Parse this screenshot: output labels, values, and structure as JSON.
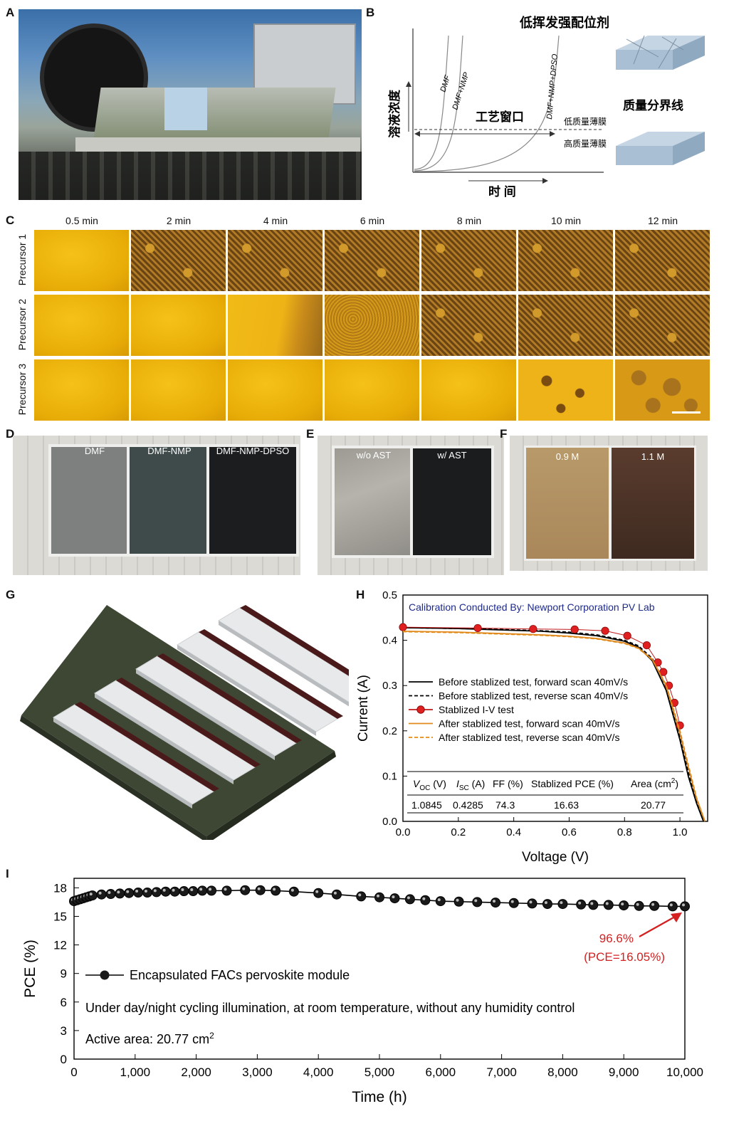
{
  "panels": {
    "A": "A",
    "B": "B",
    "C": "C",
    "D": "D",
    "E": "E",
    "F": "F",
    "G": "G",
    "H": "H",
    "I": "I"
  },
  "panelB": {
    "title": "低挥发强配位剂",
    "ylabel": "溶液浓度",
    "xlabel": "时 间",
    "window_label": "工艺窗口",
    "curves": [
      "DMF",
      "DMF+NMP",
      "DMF+NMP+DPSO"
    ],
    "low_quality": "低质量薄膜",
    "high_quality": "高质量薄膜",
    "boundary": "质量分界线"
  },
  "panelC": {
    "times": [
      "0.5 min",
      "2 min",
      "4 min",
      "6 min",
      "8 min",
      "10 min",
      "12 min"
    ],
    "rows": [
      "Precursor 1",
      "Precursor 2",
      "Precursor 3"
    ],
    "morphology": [
      [
        "yellow",
        "grains",
        "grains",
        "grains",
        "grains",
        "grains",
        "grains"
      ],
      [
        "yellow",
        "yellow",
        "yellow-partial",
        "speckle",
        "grains",
        "grains",
        "grains"
      ],
      [
        "yellow",
        "yellow",
        "yellow",
        "yellow",
        "yellow",
        "islands",
        "dense-islands"
      ]
    ]
  },
  "panelD": {
    "films": [
      "DMF",
      "DMF-NMP",
      "DMF-NMP-DPSO"
    ]
  },
  "panelE": {
    "films": [
      "w/o AST",
      "w/ AST"
    ]
  },
  "panelF": {
    "films": [
      "0.9 M",
      "1.1 M"
    ]
  },
  "panelH": {
    "note": "Calibration Conducted By: Newport Corporation PV Lab",
    "legend": [
      "Before stablized test, forward scan 40mV/s",
      "Before stablized test, reverse scan 40mV/s",
      "Stablized I-V test",
      "After stablized test, forward scan 40mV/s",
      "After stablized test, reverse scan 40mV/s"
    ],
    "table_headers": [
      "V",
      "(V)",
      "I",
      "(A)",
      "FF (%)",
      "Stablized PCE (%)",
      "Area (cm",
      "2",
      ")"
    ],
    "table_sub": [
      "OC",
      "SC"
    ],
    "table_values": [
      "1.0845",
      "0.4285",
      "74.3",
      "16.63",
      "20.77"
    ]
  },
  "panelI": {
    "legend": "Encapsulated FACs pervoskite module",
    "note1": "Under day/night cycling illumination, at room temperature, without any humidity control",
    "note2": "Active area: 20.77 cm",
    "note2_sup": "2",
    "annot1": "96.6%",
    "annot2": "(PCE=16.05%)"
  },
  "chart_data": [
    {
      "type": "line",
      "panel": "H",
      "xlabel": "Voltage (V)",
      "ylabel": "Current (A)",
      "xlim": [
        0.0,
        1.1
      ],
      "ylim": [
        0.0,
        0.5
      ],
      "xticks": [
        "0.0",
        "0.2",
        "0.4",
        "0.6",
        "0.8",
        "1.0"
      ],
      "yticks": [
        "0.0",
        "0.1",
        "0.2",
        "0.3",
        "0.4",
        "0.5"
      ],
      "series": [
        {
          "name": "Before stablized test, forward scan 40mV/s",
          "color": "#000000",
          "style": "solid",
          "x": [
            0,
            0.1,
            0.2,
            0.3,
            0.4,
            0.5,
            0.6,
            0.7,
            0.8,
            0.85,
            0.9,
            0.95,
            1.0,
            1.03,
            1.06,
            1.085
          ],
          "y": [
            0.428,
            0.427,
            0.426,
            0.424,
            0.422,
            0.42,
            0.416,
            0.41,
            0.398,
            0.385,
            0.355,
            0.29,
            0.18,
            0.1,
            0.04,
            0.0
          ]
        },
        {
          "name": "Before stablized test, reverse scan 40mV/s",
          "color": "#000000",
          "style": "dashed",
          "x": [
            0,
            0.1,
            0.2,
            0.3,
            0.4,
            0.5,
            0.6,
            0.7,
            0.8,
            0.85,
            0.9,
            0.95,
            1.0,
            1.03,
            1.06,
            1.085
          ],
          "y": [
            0.428,
            0.427,
            0.426,
            0.425,
            0.423,
            0.421,
            0.418,
            0.412,
            0.4,
            0.388,
            0.36,
            0.298,
            0.19,
            0.11,
            0.045,
            0.0
          ]
        },
        {
          "name": "Stablized I-V test",
          "color": "#e02020",
          "style": "markers",
          "x": [
            0.0,
            0.27,
            0.47,
            0.62,
            0.73,
            0.81,
            0.88,
            0.92,
            0.94,
            0.96,
            0.98,
            1.0
          ],
          "y": [
            0.429,
            0.427,
            0.425,
            0.424,
            0.421,
            0.41,
            0.389,
            0.351,
            0.33,
            0.3,
            0.262,
            0.212
          ]
        },
        {
          "name": "After stablized test, forward scan 40mV/s",
          "color": "#e08a1e",
          "style": "solid",
          "x": [
            0,
            0.1,
            0.2,
            0.3,
            0.4,
            0.5,
            0.6,
            0.7,
            0.8,
            0.85,
            0.9,
            0.95,
            1.0,
            1.03,
            1.06,
            1.09
          ],
          "y": [
            0.42,
            0.419,
            0.418,
            0.416,
            0.414,
            0.412,
            0.409,
            0.404,
            0.394,
            0.383,
            0.358,
            0.3,
            0.195,
            0.12,
            0.05,
            0.0
          ]
        },
        {
          "name": "After stablized test, reverse scan 40mV/s",
          "color": "#e08a1e",
          "style": "dashed",
          "x": [
            0,
            0.1,
            0.2,
            0.3,
            0.4,
            0.5,
            0.6,
            0.7,
            0.8,
            0.85,
            0.9,
            0.95,
            1.0,
            1.03,
            1.06,
            1.09
          ],
          "y": [
            0.419,
            0.418,
            0.417,
            0.415,
            0.413,
            0.411,
            0.408,
            0.403,
            0.393,
            0.382,
            0.357,
            0.302,
            0.2,
            0.125,
            0.052,
            0.0
          ]
        }
      ]
    },
    {
      "type": "line",
      "panel": "I",
      "xlabel": "Time (h)",
      "ylabel": "PCE (%)",
      "xlim": [
        0,
        10000
      ],
      "ylim": [
        0,
        19
      ],
      "xticks": [
        "0",
        "1,000",
        "2,000",
        "3,000",
        "4,000",
        "5,000",
        "6,000",
        "7,000",
        "8,000",
        "9,000",
        "10,000"
      ],
      "yticks": [
        "0",
        "3",
        "6",
        "9",
        "12",
        "15",
        "18"
      ],
      "series": [
        {
          "name": "Encapsulated FACs pervoskite module",
          "color": "#000000",
          "style": "line-markers",
          "x": [
            0,
            50,
            100,
            150,
            200,
            250,
            300,
            450,
            600,
            750,
            900,
            1050,
            1200,
            1350,
            1500,
            1650,
            1800,
            1950,
            2100,
            2250,
            2500,
            2800,
            3050,
            3300,
            3600,
            4000,
            4300,
            4700,
            5000,
            5250,
            5500,
            5750,
            6000,
            6300,
            6600,
            6900,
            7200,
            7500,
            7750,
            8000,
            8300,
            8500,
            8750,
            9000,
            9250,
            9500,
            9800,
            10000
          ],
          "y": [
            16.6,
            16.7,
            16.8,
            16.9,
            17.0,
            17.1,
            17.2,
            17.3,
            17.35,
            17.4,
            17.45,
            17.5,
            17.5,
            17.55,
            17.6,
            17.6,
            17.65,
            17.65,
            17.7,
            17.7,
            17.7,
            17.75,
            17.75,
            17.7,
            17.6,
            17.45,
            17.3,
            17.1,
            17.0,
            16.9,
            16.8,
            16.7,
            16.6,
            16.55,
            16.5,
            16.45,
            16.4,
            16.35,
            16.3,
            16.3,
            16.25,
            16.2,
            16.2,
            16.15,
            16.1,
            16.1,
            16.05,
            16.05
          ]
        }
      ]
    }
  ]
}
